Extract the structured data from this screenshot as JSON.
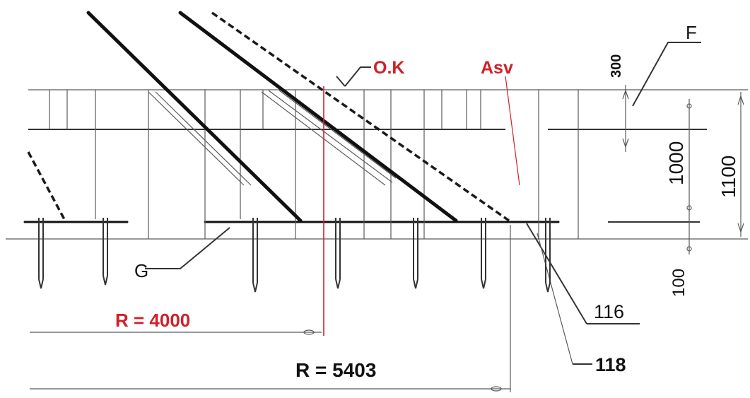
{
  "labels": {
    "ok": "O.K",
    "asv": "Asv",
    "f": "F",
    "g": "G",
    "dim_300": "300",
    "dim_1000": "1000",
    "dim_1100": "1100",
    "dim_100": "100",
    "r_4000": "R = 4000",
    "r_5403": "R = 5403",
    "ref_116": "116",
    "ref_118": "118"
  },
  "colors": {
    "annotation_red": "#d0202a",
    "ink": "#111111",
    "construction_gray": "#5a5a5a"
  }
}
